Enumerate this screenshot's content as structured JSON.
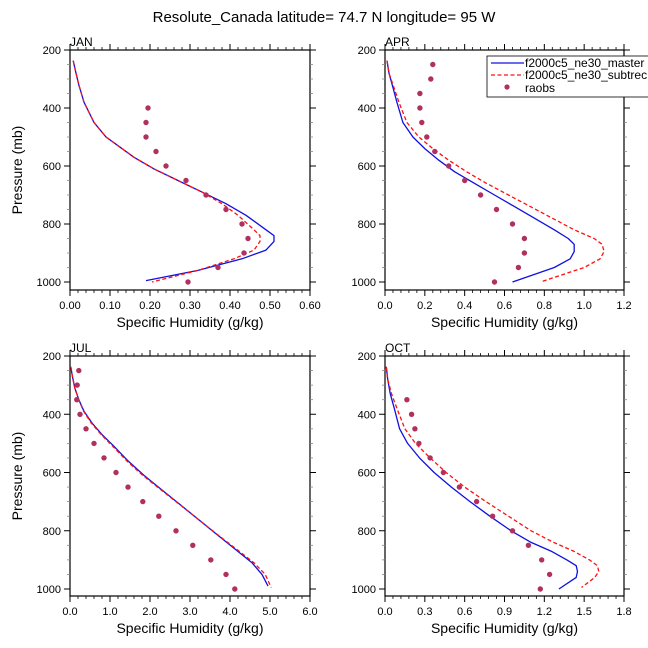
{
  "figure": {
    "title": "Resolute_Canada  latitude= 74.7 N longitude= 95 W"
  },
  "legend": {
    "placement": "top-right of APR panel (clipped)",
    "entries": [
      {
        "label": "f2000c5_ne30_master",
        "style": "solid",
        "color": "#1010e0"
      },
      {
        "label": "f2000c5_ne30_subtrec",
        "style": "dashed",
        "color": "#ff1010"
      },
      {
        "label": "raobs",
        "style": "marker",
        "color": "#b03060"
      }
    ]
  },
  "colors": {
    "master": "#1010e0",
    "subtrec": "#ff1010",
    "raobs": "#b03060",
    "axes": "#000000"
  },
  "chart_data": [
    {
      "type": "line",
      "title": "JAN",
      "xlabel": "Specific Humidity (g/kg)",
      "ylabel": "Pressure (mb)",
      "xlim": [
        0,
        0.6
      ],
      "ylim": [
        1000,
        200
      ],
      "y_inverted": true,
      "xticks": [
        "0.00",
        "0.10",
        "0.20",
        "0.30",
        "0.40",
        "0.50",
        "0.60"
      ],
      "xtick_values": [
        0,
        0.1,
        0.2,
        0.3,
        0.4,
        0.5,
        0.6
      ],
      "yticks": [
        "200",
        "400",
        "600",
        "800",
        "1000"
      ],
      "ytick_values": [
        200,
        400,
        600,
        800,
        1000
      ],
      "series": [
        {
          "name": "f2000c5_ne30_master",
          "kind": "line",
          "x": [
            0.008,
            0.015,
            0.022,
            0.035,
            0.06,
            0.09,
            0.12,
            0.16,
            0.21,
            0.27,
            0.33,
            0.39,
            0.44,
            0.49,
            0.51,
            0.51,
            0.49,
            0.43,
            0.32,
            0.19
          ],
          "y": [
            237,
            280,
            320,
            380,
            450,
            500,
            530,
            570,
            610,
            650,
            690,
            730,
            770,
            820,
            840,
            860,
            890,
            920,
            960,
            995
          ]
        },
        {
          "name": "f2000c5_ne30_subtrec",
          "kind": "line",
          "x": [
            0.008,
            0.015,
            0.022,
            0.035,
            0.06,
            0.09,
            0.12,
            0.16,
            0.21,
            0.27,
            0.33,
            0.38,
            0.42,
            0.46,
            0.475,
            0.475,
            0.46,
            0.41,
            0.32,
            0.205
          ],
          "y": [
            237,
            280,
            320,
            380,
            450,
            500,
            530,
            570,
            610,
            650,
            690,
            730,
            770,
            820,
            840,
            860,
            890,
            920,
            960,
            1000
          ]
        },
        {
          "name": "raobs",
          "kind": "scatter",
          "x": [
            0.195,
            0.19,
            0.19,
            0.215,
            0.24,
            0.29,
            0.34,
            0.39,
            0.43,
            0.445,
            0.435,
            0.37,
            0.295
          ],
          "y": [
            400,
            450,
            500,
            550,
            600,
            650,
            700,
            750,
            800,
            850,
            900,
            950,
            1000
          ]
        }
      ]
    },
    {
      "type": "line",
      "title": "APR",
      "xlabel": "Specific Humidity (g/kg)",
      "ylabel": "",
      "xlim": [
        0,
        1.2
      ],
      "ylim": [
        1000,
        200
      ],
      "y_inverted": true,
      "xticks": [
        "0.0",
        "0.2",
        "0.4",
        "0.6",
        "0.8",
        "1.0",
        "1.2"
      ],
      "xtick_values": [
        0,
        0.2,
        0.4,
        0.6,
        0.8,
        1.0,
        1.2
      ],
      "yticks": [
        "200",
        "400",
        "600",
        "800",
        "1000"
      ],
      "ytick_values": [
        200,
        400,
        600,
        800,
        1000
      ],
      "series": [
        {
          "name": "f2000c5_ne30_master",
          "kind": "line",
          "x": [
            0.01,
            0.02,
            0.04,
            0.06,
            0.09,
            0.14,
            0.2,
            0.27,
            0.35,
            0.45,
            0.55,
            0.65,
            0.75,
            0.85,
            0.92,
            0.95,
            0.95,
            0.93,
            0.85,
            0.64
          ],
          "y": [
            237,
            280,
            330,
            380,
            450,
            500,
            540,
            580,
            620,
            660,
            700,
            740,
            780,
            820,
            850,
            870,
            895,
            920,
            950,
            1000
          ]
        },
        {
          "name": "f2000c5_ne30_subtrec",
          "kind": "line",
          "x": [
            0.01,
            0.02,
            0.045,
            0.07,
            0.11,
            0.17,
            0.24,
            0.32,
            0.41,
            0.51,
            0.62,
            0.73,
            0.84,
            0.95,
            1.05,
            1.09,
            1.1,
            1.08,
            1.0,
            0.78
          ],
          "y": [
            237,
            280,
            330,
            380,
            450,
            500,
            540,
            580,
            620,
            660,
            700,
            740,
            780,
            820,
            850,
            870,
            895,
            920,
            950,
            1000
          ]
        },
        {
          "name": "raobs",
          "kind": "scatter",
          "x": [
            0.24,
            0.23,
            0.175,
            0.175,
            0.185,
            0.21,
            0.25,
            0.32,
            0.4,
            0.48,
            0.56,
            0.64,
            0.7,
            0.7,
            0.67,
            0.55
          ],
          "y": [
            250,
            300,
            350,
            400,
            450,
            500,
            550,
            600,
            650,
            700,
            750,
            800,
            850,
            900,
            950,
            1000
          ]
        }
      ]
    },
    {
      "type": "line",
      "title": "JUL",
      "xlabel": "Specific Humidity (g/kg)",
      "ylabel": "Pressure (mb)",
      "xlim": [
        0,
        6
      ],
      "ylim": [
        1000,
        200
      ],
      "y_inverted": true,
      "xticks": [
        "0.0",
        "1.0",
        "2.0",
        "3.0",
        "4.0",
        "5.0",
        "6.0"
      ],
      "xtick_values": [
        0,
        1,
        2,
        3,
        4,
        5,
        6
      ],
      "yticks": [
        "200",
        "400",
        "600",
        "800",
        "1000"
      ],
      "ytick_values": [
        200,
        400,
        600,
        800,
        1000
      ],
      "series": [
        {
          "name": "f2000c5_ne30_master",
          "kind": "line",
          "x": [
            0.02,
            0.06,
            0.12,
            0.22,
            0.35,
            0.55,
            0.8,
            1.1,
            1.45,
            1.85,
            2.3,
            2.75,
            3.2,
            3.65,
            4.1,
            4.55,
            4.8,
            4.95
          ],
          "y": [
            237,
            270,
            310,
            350,
            390,
            430,
            470,
            510,
            560,
            610,
            660,
            710,
            760,
            810,
            860,
            910,
            950,
            990
          ]
        },
        {
          "name": "f2000c5_ne30_subtrec",
          "kind": "line",
          "x": [
            0.02,
            0.06,
            0.12,
            0.22,
            0.34,
            0.53,
            0.78,
            1.07,
            1.42,
            1.82,
            2.28,
            2.74,
            3.2,
            3.66,
            4.13,
            4.6,
            4.88,
            5.03
          ],
          "y": [
            237,
            270,
            310,
            350,
            390,
            430,
            470,
            510,
            560,
            610,
            660,
            710,
            760,
            810,
            860,
            910,
            950,
            995
          ]
        },
        {
          "name": "raobs",
          "kind": "scatter",
          "x": [
            0.22,
            0.18,
            0.17,
            0.25,
            0.4,
            0.6,
            0.85,
            1.15,
            1.45,
            1.82,
            2.22,
            2.65,
            3.07,
            3.52,
            3.9,
            4.12
          ],
          "y": [
            250,
            300,
            350,
            400,
            450,
            500,
            550,
            600,
            650,
            700,
            750,
            800,
            850,
            900,
            950,
            1000
          ]
        }
      ]
    },
    {
      "type": "line",
      "title": "OCT",
      "xlabel": "Specific Humidity (g/kg)",
      "ylabel": "",
      "xlim": [
        0,
        1.8
      ],
      "ylim": [
        1000,
        200
      ],
      "y_inverted": true,
      "xticks": [
        "0.0",
        "0.3",
        "0.6",
        "0.9",
        "1.2",
        "1.5",
        "1.8"
      ],
      "xtick_values": [
        0,
        0.3,
        0.6,
        0.9,
        1.2,
        1.5,
        1.8
      ],
      "yticks": [
        "200",
        "400",
        "600",
        "800",
        "1000"
      ],
      "ytick_values": [
        200,
        400,
        600,
        800,
        1000
      ],
      "series": [
        {
          "name": "f2000c5_ne30_master",
          "kind": "line",
          "x": [
            0.01,
            0.02,
            0.04,
            0.07,
            0.11,
            0.17,
            0.26,
            0.37,
            0.5,
            0.64,
            0.79,
            0.95,
            1.1,
            1.25,
            1.37,
            1.44,
            1.45,
            1.44,
            1.31
          ],
          "y": [
            237,
            280,
            330,
            380,
            450,
            500,
            550,
            600,
            650,
            700,
            750,
            800,
            840,
            870,
            900,
            920,
            940,
            960,
            1000
          ]
        },
        {
          "name": "f2000c5_ne30_subtrec",
          "kind": "line",
          "x": [
            0.01,
            0.02,
            0.05,
            0.09,
            0.15,
            0.23,
            0.34,
            0.46,
            0.6,
            0.76,
            0.93,
            1.1,
            1.27,
            1.42,
            1.54,
            1.6,
            1.61,
            1.58,
            1.48
          ],
          "y": [
            237,
            280,
            330,
            380,
            450,
            500,
            550,
            600,
            650,
            700,
            750,
            800,
            840,
            870,
            900,
            920,
            940,
            960,
            995
          ]
        },
        {
          "name": "raobs",
          "kind": "scatter",
          "x": [
            0.165,
            0.2,
            0.225,
            0.255,
            0.34,
            0.44,
            0.56,
            0.69,
            0.81,
            0.96,
            1.08,
            1.18,
            1.24,
            1.17
          ],
          "y": [
            350,
            400,
            450,
            500,
            550,
            600,
            650,
            700,
            750,
            800,
            850,
            900,
            950,
            1000
          ]
        }
      ]
    }
  ]
}
